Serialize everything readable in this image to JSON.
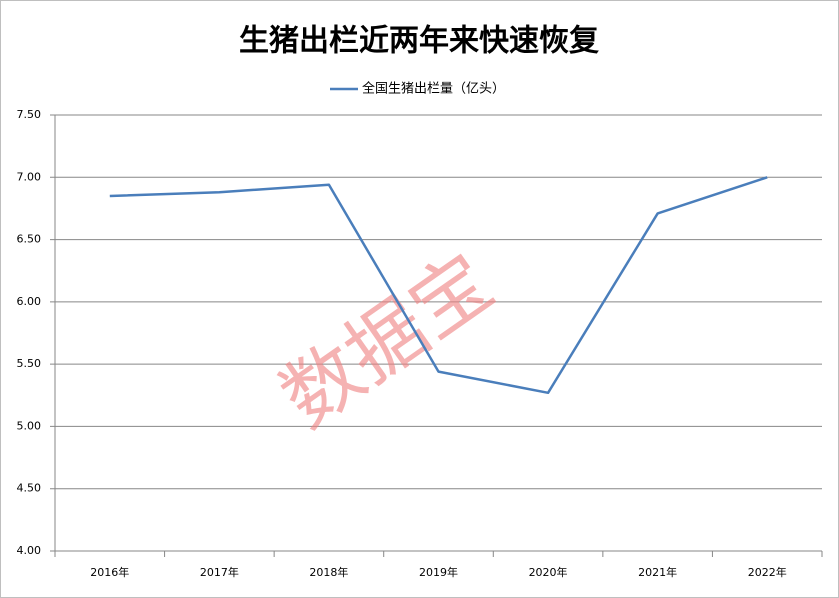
{
  "chart_data": {
    "type": "line",
    "title": "生猪出栏近两年来快速恢复",
    "categories": [
      "2016年",
      "2017年",
      "2018年",
      "2019年",
      "2020年",
      "2021年",
      "2022年"
    ],
    "series": [
      {
        "name": "全国生猪出栏量（亿头）",
        "color": "#4a7ebb",
        "values": [
          6.85,
          6.88,
          6.94,
          5.44,
          5.27,
          6.71,
          7.0
        ]
      }
    ],
    "ylim": [
      4,
      7.5
    ],
    "yticks": [
      {
        "value": 4,
        "label": "4.00"
      },
      {
        "value": 4.5,
        "label": "4.50"
      },
      {
        "value": 5,
        "label": "5.00"
      },
      {
        "value": 5.5,
        "label": "5.50"
      },
      {
        "value": 6,
        "label": "6.00"
      },
      {
        "value": 6.5,
        "label": "6.50"
      },
      {
        "value": 7,
        "label": "7.00"
      },
      {
        "value": 7.5,
        "label": "7.50"
      }
    ],
    "grid": true,
    "legend": "top",
    "watermark": "数据宝"
  }
}
